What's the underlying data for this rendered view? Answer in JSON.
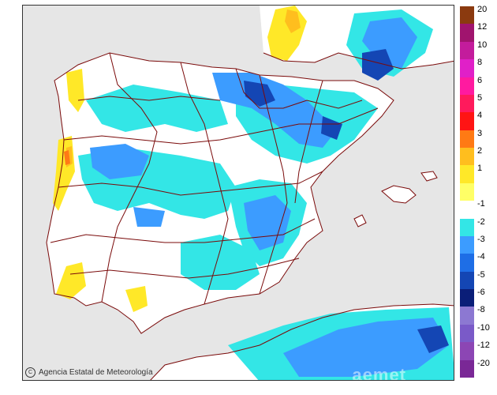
{
  "credit": {
    "logo_glyph": "C",
    "text": "Agencia Estatal de Meteorología"
  },
  "legend": {
    "items": [
      {
        "label": "20",
        "color": "#8b3a0f"
      },
      {
        "label": "12",
        "color": "#a0146e"
      },
      {
        "label": "10",
        "color": "#c31c9c"
      },
      {
        "label": "8",
        "color": "#e020c8"
      },
      {
        "label": "6",
        "color": "#ff1aa0"
      },
      {
        "label": "5",
        "color": "#ff1a5c"
      },
      {
        "label": "4",
        "color": "#ff1414"
      },
      {
        "label": "3",
        "color": "#ff7a14"
      },
      {
        "label": "2",
        "color": "#ffbe1e"
      },
      {
        "label": "1",
        "color": "#ffe828"
      },
      {
        "label": "",
        "color": "#ffff66"
      },
      {
        "label": "-1",
        "color": "#ffffff"
      },
      {
        "label": "-2",
        "color": "#33e6e6"
      },
      {
        "label": "-3",
        "color": "#3c9cff"
      },
      {
        "label": "-4",
        "color": "#1e6ee6"
      },
      {
        "label": "-5",
        "color": "#1446b4"
      },
      {
        "label": "-6",
        "color": "#0a1e78"
      },
      {
        "label": "-8",
        "color": "#8c78d2"
      },
      {
        "label": "-10",
        "color": "#7a5ac8"
      },
      {
        "label": "-12",
        "color": "#8c46b4"
      },
      {
        "label": "-20",
        "color": "#7a2896"
      }
    ]
  },
  "map": {
    "land_color": "#ffffff",
    "sea_color": "#e6e6e6",
    "border_color": "#7a0a0a"
  },
  "watermark": "aemet"
}
